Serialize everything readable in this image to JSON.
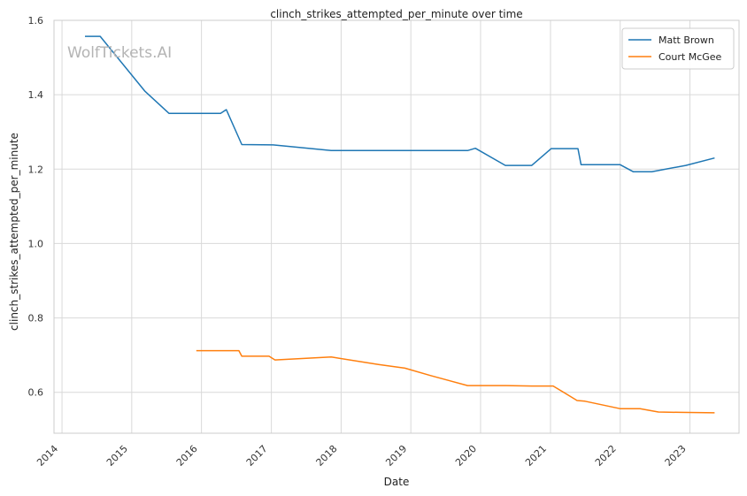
{
  "chart_data": {
    "type": "line",
    "title": "clinch_strikes_attempted_per_minute over time",
    "xlabel": "Date",
    "ylabel": "clinch_strikes_attempted_per_minute",
    "watermark": "WolfTickets.AI",
    "xlim": [
      "2013-11-20",
      "2023-09-15"
    ],
    "ylim": [
      0.49,
      1.6
    ],
    "x_ticks": [
      "2014",
      "2015",
      "2016",
      "2017",
      "2018",
      "2019",
      "2020",
      "2021",
      "2022",
      "2023"
    ],
    "y_ticks": [
      "0.6",
      "0.8",
      "1.0",
      "1.2",
      "1.4",
      "1.6"
    ],
    "grid": true,
    "legend_position": "top-right",
    "colors": {
      "Matt Brown": "#1f77b4",
      "Court McGee": "#ff7f0e"
    },
    "series": [
      {
        "name": "Matt Brown",
        "points": [
          [
            "2014-05-01",
            1.557
          ],
          [
            "2014-07-20",
            1.557
          ],
          [
            "2015-03-10",
            1.41
          ],
          [
            "2015-07-15",
            1.35
          ],
          [
            "2016-04-10",
            1.35
          ],
          [
            "2016-05-10",
            1.36
          ],
          [
            "2016-07-30",
            1.266
          ],
          [
            "2017-01-10",
            1.265
          ],
          [
            "2017-11-10",
            1.25
          ],
          [
            "2018-07-15",
            1.25
          ],
          [
            "2019-01-15",
            1.25
          ],
          [
            "2019-10-25",
            1.25
          ],
          [
            "2019-12-05",
            1.256
          ],
          [
            "2020-05-10",
            1.21
          ],
          [
            "2020-09-25",
            1.21
          ],
          [
            "2021-01-05",
            1.255
          ],
          [
            "2021-05-25",
            1.255
          ],
          [
            "2021-06-10",
            1.212
          ],
          [
            "2021-12-31",
            1.212
          ],
          [
            "2022-03-10",
            1.193
          ],
          [
            "2022-06-15",
            1.193
          ],
          [
            "2022-12-10",
            1.21
          ],
          [
            "2023-05-10",
            1.23
          ]
        ]
      },
      {
        "name": "Court McGee",
        "points": [
          [
            "2015-12-05",
            0.712
          ],
          [
            "2016-07-15",
            0.712
          ],
          [
            "2016-07-30",
            0.697
          ],
          [
            "2016-12-20",
            0.697
          ],
          [
            "2017-01-20",
            0.687
          ],
          [
            "2017-11-10",
            0.695
          ],
          [
            "2018-07-15",
            0.675
          ],
          [
            "2018-12-01",
            0.665
          ],
          [
            "2019-04-15",
            0.645
          ],
          [
            "2019-10-25",
            0.618
          ],
          [
            "2020-05-15",
            0.618
          ],
          [
            "2020-09-25",
            0.617
          ],
          [
            "2021-01-15",
            0.617
          ],
          [
            "2021-05-20",
            0.578
          ],
          [
            "2021-07-01",
            0.576
          ],
          [
            "2021-12-31",
            0.556
          ],
          [
            "2022-04-15",
            0.556
          ],
          [
            "2022-07-20",
            0.547
          ],
          [
            "2022-11-10",
            0.546
          ],
          [
            "2023-05-10",
            0.545
          ]
        ]
      }
    ]
  }
}
